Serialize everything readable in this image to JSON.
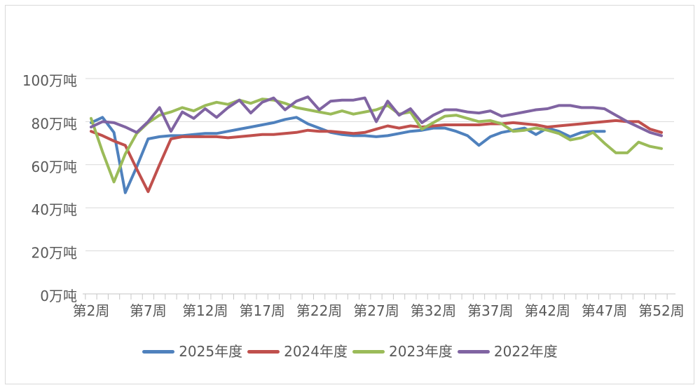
{
  "chart_data": {
    "type": "line",
    "title": "",
    "unit": "万吨",
    "grid": true,
    "legend_position": "bottom",
    "ylim": [
      0,
      100
    ],
    "y_ticks": [
      {
        "label": "0万吨",
        "value": 0
      },
      {
        "label": "20万吨",
        "value": 20
      },
      {
        "label": "40万吨",
        "value": 40
      },
      {
        "label": "60万吨",
        "value": 60
      },
      {
        "label": "80万吨",
        "value": 80
      },
      {
        "label": "100万吨",
        "value": 100
      }
    ],
    "x_axis": {
      "week_start": 2,
      "week_end": 52,
      "tick_labels": [
        {
          "label": "第2周",
          "week": 2
        },
        {
          "label": "第7周",
          "week": 7
        },
        {
          "label": "第12周",
          "week": 12
        },
        {
          "label": "第17周",
          "week": 17
        },
        {
          "label": "第22周",
          "week": 22
        },
        {
          "label": "第27周",
          "week": 27
        },
        {
          "label": "第32周",
          "week": 32
        },
        {
          "label": "第37周",
          "week": 37
        },
        {
          "label": "第42周",
          "week": 42
        },
        {
          "label": "第47周",
          "week": 47
        },
        {
          "label": "第52周",
          "week": 52
        }
      ]
    },
    "series": [
      {
        "name": "2025年度",
        "color": "#4F81BD",
        "start_week": 2,
        "values": [
          79.5,
          82,
          75,
          47,
          59,
          72,
          73,
          73.5,
          73.5,
          74,
          74.5,
          74.5,
          75.5,
          76.5,
          77.5,
          78.5,
          79.5,
          81,
          82,
          79,
          77,
          75,
          74,
          73.5,
          73.5,
          73,
          73.5,
          74.5,
          75.5,
          76,
          77,
          77,
          75.5,
          73.5,
          69,
          73,
          75,
          76,
          77,
          74,
          77,
          75.5,
          73,
          75,
          75.5,
          75.5
        ]
      },
      {
        "name": "2024年度",
        "color": "#C0504D",
        "start_week": 2,
        "values": [
          75.5,
          73.5,
          71,
          69,
          58,
          47.5,
          60,
          72,
          73,
          73,
          73,
          73,
          72.5,
          73,
          73.5,
          74,
          74,
          74.5,
          75,
          76,
          75.5,
          75.5,
          75,
          74.5,
          75,
          76.5,
          78,
          77,
          78,
          77.5,
          78,
          78.5,
          78.5,
          78.5,
          78.5,
          79,
          79,
          79.5,
          79,
          78.5,
          77.5,
          78,
          78.5,
          79,
          79.5,
          80,
          80.5,
          80,
          80,
          76.5,
          75
        ]
      },
      {
        "name": "2023年度",
        "color": "#9BBB59",
        "start_week": 2,
        "values": [
          81.5,
          66,
          52,
          65,
          74.5,
          79.5,
          83,
          84.5,
          86.5,
          85,
          87.5,
          89,
          88,
          90,
          88.5,
          90.5,
          90,
          88.5,
          86.5,
          85.5,
          84.5,
          83.5,
          85,
          83.5,
          84.5,
          85.5,
          87.5,
          83.5,
          84.5,
          76.5,
          79.5,
          82.5,
          83,
          81.5,
          80,
          80.5,
          79,
          75.5,
          76,
          77,
          76,
          74.5,
          71.5,
          72.5,
          75,
          70,
          65.5,
          65.5,
          70.5,
          68.5,
          67.5
        ]
      },
      {
        "name": "2022年度",
        "color": "#8064A2",
        "start_week": 2,
        "values": [
          77.5,
          80,
          79.5,
          77.5,
          75,
          80,
          86.5,
          75.5,
          84.5,
          81.5,
          86,
          82,
          86.5,
          90,
          84,
          89,
          91,
          85.5,
          89.5,
          91.5,
          85.5,
          89.5,
          90,
          90,
          91,
          80,
          89.5,
          83,
          86,
          79.5,
          83,
          85.5,
          85.5,
          84.5,
          84,
          85,
          82.5,
          83.5,
          84.5,
          85.5,
          86,
          87.5,
          87.5,
          86.5,
          86.5,
          86,
          83,
          80,
          77.5,
          75,
          73.5
        ]
      }
    ],
    "colors": {
      "gridline": "#D9D9D9",
      "axis": "#C6C6C6",
      "text": "#595959",
      "border": "#D9D9D9"
    }
  }
}
